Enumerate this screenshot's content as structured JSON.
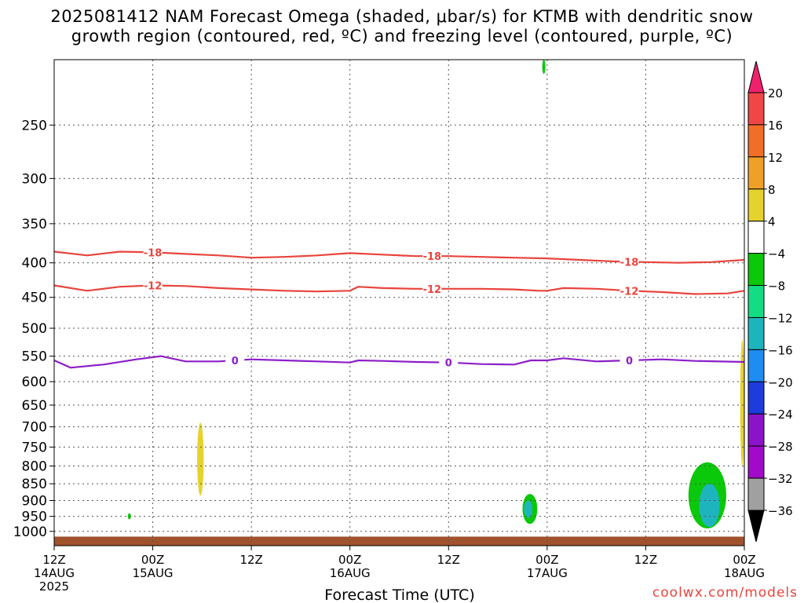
{
  "title_line1": "2025081412 NAM Forecast Omega (shaded, μbar/s) for KTMB with dendritic snow",
  "title_line2": "growth region (contoured, red, ºC) and freezing level (contoured, purple, ºC)",
  "credit": "coolwx.com/models",
  "chart_data": {
    "type": "contour",
    "title": "2025081412 NAM Forecast Omega (shaded, μbar/s) for KTMB with dendritic snow growth region (contoured, red, ºC) and freezing level (contoured, purple, ºC)",
    "xlabel": "Forecast Time (UTC)",
    "ylabel": "",
    "y_axis": {
      "scale": "log-pressure",
      "range_hPa": [
        1050,
        200
      ],
      "tick_labels": [
        "250",
        "300",
        "350",
        "400",
        "450",
        "500",
        "550",
        "600",
        "650",
        "700",
        "750",
        "800",
        "850",
        "900",
        "950",
        "1000"
      ]
    },
    "x_axis": {
      "range_hours_since_2025081412": [
        0,
        84
      ],
      "ticks": [
        {
          "h": 0,
          "lines": [
            "12Z",
            "14AUG",
            "2025"
          ]
        },
        {
          "h": 12,
          "lines": [
            "00Z",
            "15AUG"
          ]
        },
        {
          "h": 24,
          "lines": [
            "12Z"
          ]
        },
        {
          "h": 36,
          "lines": [
            "00Z",
            "16AUG"
          ]
        },
        {
          "h": 48,
          "lines": [
            "12Z"
          ]
        },
        {
          "h": 60,
          "lines": [
            "00Z",
            "17AUG"
          ]
        },
        {
          "h": 72,
          "lines": [
            "12Z"
          ]
        },
        {
          "h": 84,
          "lines": [
            "00Z",
            "18AUG"
          ]
        }
      ]
    },
    "grid": true,
    "colorbar": {
      "labels": [
        "20",
        "16",
        "12",
        "8",
        "4",
        "−4",
        "−8",
        "−12",
        "−16",
        "−20",
        "−24",
        "−28",
        "−32",
        "−36"
      ],
      "colors": [
        "#f0206e",
        "#f04646",
        "#f06e28",
        "#f0a028",
        "#e6d22d",
        "#ffffff",
        "#0ac80a",
        "#14dc82",
        "#1eb4be",
        "#1e8cf0",
        "#1e3cdc",
        "#8c14c8",
        "#a00ac8",
        "#a0a0a0",
        "#000000"
      ]
    },
    "series": [
      {
        "name": "-18",
        "kind": "isotherm",
        "color": "#e8443c",
        "points": [
          [
            0,
            385
          ],
          [
            4,
            390
          ],
          [
            8,
            385
          ],
          [
            12,
            386
          ],
          [
            16,
            388
          ],
          [
            20,
            390
          ],
          [
            24,
            393
          ],
          [
            28,
            392
          ],
          [
            32,
            390
          ],
          [
            36,
            387
          ],
          [
            40,
            389
          ],
          [
            44,
            391
          ],
          [
            48,
            391
          ],
          [
            52,
            392
          ],
          [
            56,
            393
          ],
          [
            60,
            394
          ],
          [
            64,
            396
          ],
          [
            68,
            398
          ],
          [
            72,
            399
          ],
          [
            76,
            400
          ],
          [
            80,
            399
          ],
          [
            84,
            396
          ]
        ],
        "labels_at_h": [
          12,
          46,
          70
        ]
      },
      {
        "name": "-12",
        "kind": "isotherm",
        "color": "#e8443c",
        "points": [
          [
            0,
            432
          ],
          [
            4,
            440
          ],
          [
            8,
            434
          ],
          [
            12,
            432
          ],
          [
            16,
            433
          ],
          [
            20,
            436
          ],
          [
            24,
            438
          ],
          [
            28,
            440
          ],
          [
            32,
            441
          ],
          [
            36,
            440
          ],
          [
            37,
            434
          ],
          [
            40,
            436
          ],
          [
            44,
            437
          ],
          [
            48,
            437
          ],
          [
            52,
            437
          ],
          [
            56,
            438
          ],
          [
            59,
            440
          ],
          [
            60,
            440
          ],
          [
            62,
            436
          ],
          [
            66,
            437
          ],
          [
            70,
            440
          ],
          [
            74,
            442
          ],
          [
            78,
            445
          ],
          [
            82,
            444
          ],
          [
            84,
            440
          ]
        ],
        "labels_at_h": [
          12,
          46,
          70
        ]
      },
      {
        "name": "0",
        "kind": "freezing level",
        "color": "#8c1ec8",
        "points": [
          [
            0,
            558
          ],
          [
            2,
            572
          ],
          [
            6,
            566
          ],
          [
            10,
            556
          ],
          [
            13,
            550
          ],
          [
            16,
            560
          ],
          [
            20,
            560
          ],
          [
            24,
            556
          ],
          [
            28,
            558
          ],
          [
            32,
            560
          ],
          [
            36,
            562
          ],
          [
            37,
            558
          ],
          [
            40,
            559
          ],
          [
            44,
            561
          ],
          [
            48,
            562
          ],
          [
            52,
            565
          ],
          [
            56,
            566
          ],
          [
            58,
            558
          ],
          [
            60,
            558
          ],
          [
            62,
            554
          ],
          [
            66,
            560
          ],
          [
            70,
            558
          ],
          [
            74,
            556
          ],
          [
            78,
            559
          ],
          [
            84,
            561
          ]
        ],
        "labels_at_h": [
          22,
          48,
          70
        ]
      }
    ],
    "omega_regions": [
      {
        "shade": "yellow",
        "range": "4 to 8",
        "h": [
          17.4,
          18.2
        ],
        "p_hPa": [
          690,
          885
        ]
      },
      {
        "shade": "green",
        "range": "-4 to -8",
        "h": [
          9.0,
          9.3
        ],
        "p_hPa": [
          940,
          960
        ]
      },
      {
        "shade": "green",
        "range": "-4 to -8",
        "h": [
          57.0,
          58.8
        ],
        "p_hPa": [
          880,
          975
        ]
      },
      {
        "shade": "teal",
        "range": "-8 to -12",
        "h": [
          57.2,
          58.2
        ],
        "p_hPa": [
          900,
          955
        ]
      },
      {
        "shade": "green",
        "range": "-4 to -8",
        "h": [
          77.2,
          81.8
        ],
        "p_hPa": [
          790,
          990
        ]
      },
      {
        "shade": "teal",
        "range": "-8 to -16",
        "h": [
          78.5,
          81.0
        ],
        "p_hPa": [
          850,
          985
        ]
      },
      {
        "shade": "yellow",
        "range": "4 to 8",
        "h": [
          83.5,
          84.0
        ],
        "p_hPa": [
          520,
          800
        ]
      },
      {
        "shade": "green",
        "range": "-4 to -8",
        "h": [
          59.5,
          59.7
        ],
        "p_hPa": [
          200,
          210
        ]
      }
    ],
    "terrain": {
      "color": "#a0522d",
      "surface_hPa": 1018
    }
  }
}
